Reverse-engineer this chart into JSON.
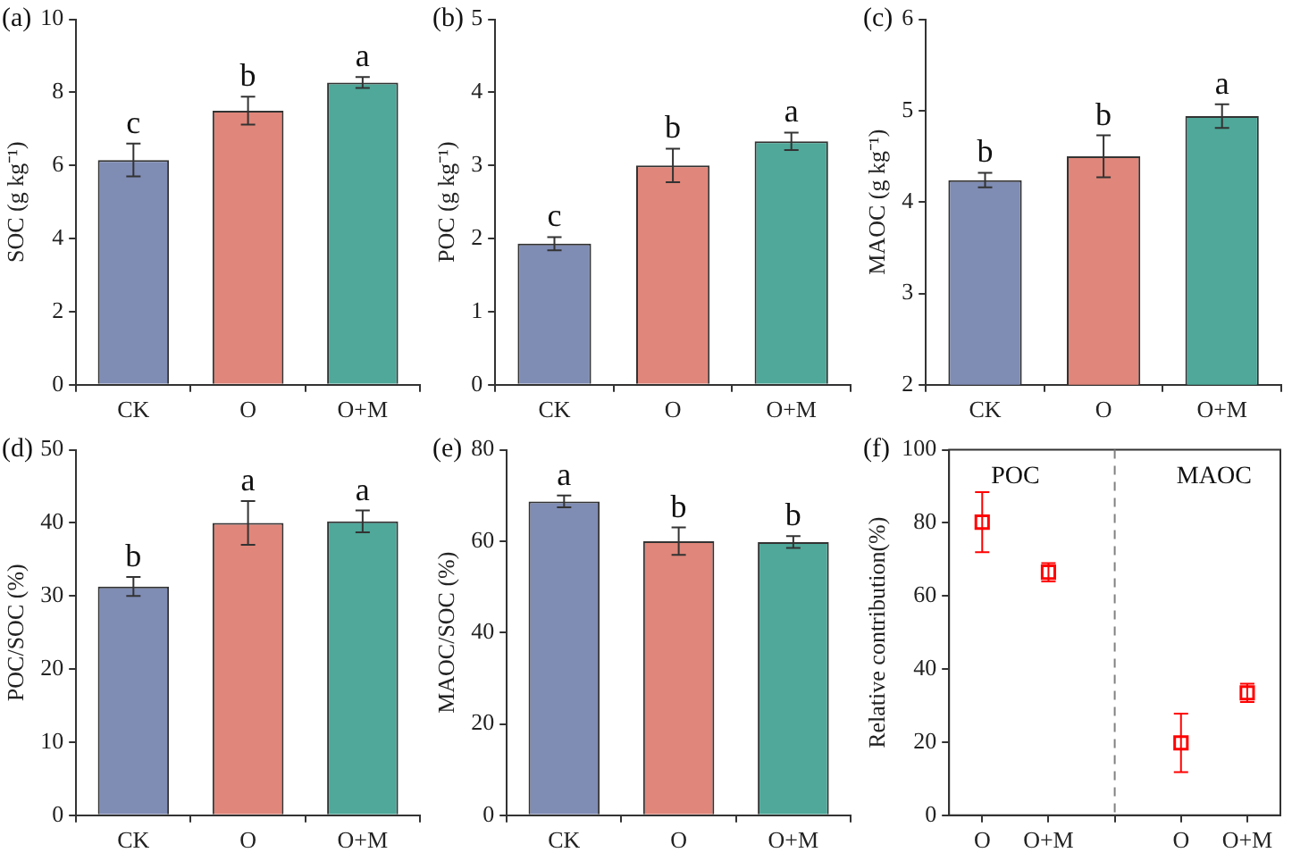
{
  "chart_data": [
    {
      "type": "bar",
      "title": "(a)",
      "ylabel": "SOC (g kg⁻¹)",
      "categories": [
        "CK",
        "O",
        "O+M"
      ],
      "values": [
        6.15,
        7.5,
        8.27
      ],
      "errors": [
        0.45,
        0.38,
        0.15
      ],
      "colors": [
        "#7f8cb4",
        "#e0867a",
        "#4fa89a"
      ],
      "ylim": [
        0,
        10
      ],
      "yticks": [
        0,
        2,
        4,
        6,
        8,
        10
      ],
      "annotations": [
        "c",
        "b",
        "a"
      ]
    },
    {
      "type": "bar",
      "title": "(b)",
      "ylabel": "POC (g kg⁻¹)",
      "categories": [
        "CK",
        "O",
        "O+M"
      ],
      "values": [
        1.93,
        3.0,
        3.33
      ],
      "errors": [
        0.09,
        0.23,
        0.12
      ],
      "colors": [
        "#7f8cb4",
        "#e0867a",
        "#4fa89a"
      ],
      "ylim": [
        0,
        5
      ],
      "yticks": [
        0,
        1,
        2,
        3,
        4,
        5
      ],
      "annotations": [
        "c",
        "b",
        "a"
      ]
    },
    {
      "type": "bar",
      "title": "(c)",
      "ylabel": "MAOC (g kg⁻¹)",
      "categories": [
        "CK",
        "O",
        "O+M"
      ],
      "values": [
        4.24,
        4.5,
        4.94
      ],
      "errors": [
        0.08,
        0.23,
        0.13
      ],
      "colors": [
        "#7f8cb4",
        "#e0867a",
        "#4fa89a"
      ],
      "ylim": [
        2,
        6
      ],
      "yticks": [
        2,
        3,
        4,
        5,
        6
      ],
      "annotations": [
        "b",
        "b",
        "a"
      ]
    },
    {
      "type": "bar",
      "title": "(d)",
      "ylabel": "POC/SOC (%)",
      "categories": [
        "CK",
        "O",
        "O+M"
      ],
      "values": [
        31.3,
        40.0,
        40.2
      ],
      "errors": [
        1.3,
        3.0,
        1.5
      ],
      "colors": [
        "#7f8cb4",
        "#e0867a",
        "#4fa89a"
      ],
      "ylim": [
        0,
        50
      ],
      "yticks": [
        0,
        10,
        20,
        30,
        40,
        50
      ],
      "annotations": [
        "b",
        "a",
        "a"
      ]
    },
    {
      "type": "bar",
      "title": "(e)",
      "ylabel": "MAOC/SOC (%)",
      "categories": [
        "CK",
        "O",
        "O+M"
      ],
      "values": [
        68.7,
        60.0,
        59.8
      ],
      "errors": [
        1.3,
        3.0,
        1.3
      ],
      "colors": [
        "#7f8cb4",
        "#e0867a",
        "#4fa89a"
      ],
      "ylim": [
        0,
        80
      ],
      "yticks": [
        0,
        20,
        40,
        60,
        80
      ],
      "annotations": [
        "a",
        "b",
        "b"
      ]
    },
    {
      "type": "scatter",
      "title": "(f)",
      "ylabel": "Relative contribution(%)",
      "categories": [
        "O",
        "O+M",
        null,
        "O",
        "O+M"
      ],
      "values": [
        80.2,
        66.5,
        null,
        19.8,
        33.5
      ],
      "errors": [
        8.2,
        2.5,
        null,
        8,
        2.5
      ],
      "color": "#ff0000",
      "marker": "square",
      "ylim": [
        0,
        100
      ],
      "yticks": [
        0,
        20,
        40,
        60,
        80,
        100
      ],
      "ref_lines": [
        {
          "axis": "x",
          "value": null,
          "color": "#808080",
          "line_style": "dashed"
        }
      ],
      "annotations": [
        "POC",
        "MAOC"
      ]
    }
  ]
}
